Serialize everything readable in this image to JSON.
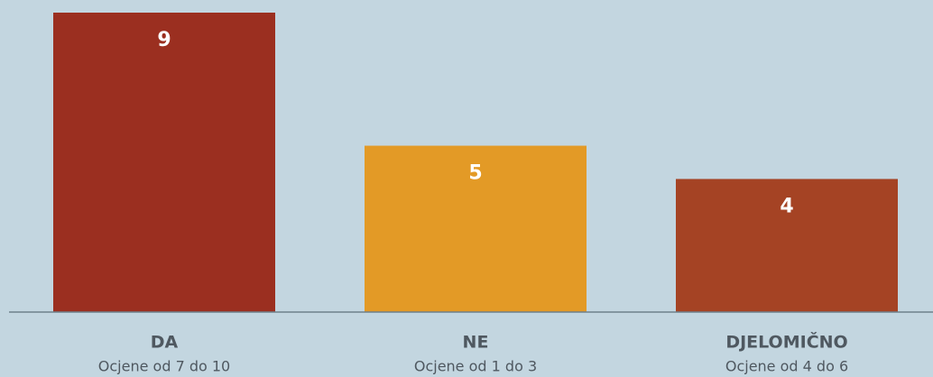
{
  "chart_data": {
    "type": "bar",
    "categories": [
      "DA",
      "NE",
      "DJELOMIČNO"
    ],
    "sublabels": [
      "Ocjene od 7 do 10",
      "Ocjene od 1 do 3",
      "Ocjene od 4 do 6"
    ],
    "values": [
      9,
      5,
      4
    ],
    "colors": [
      "#9b2f20",
      "#e39a26",
      "#a54324"
    ],
    "ylim": [
      0,
      9
    ]
  }
}
